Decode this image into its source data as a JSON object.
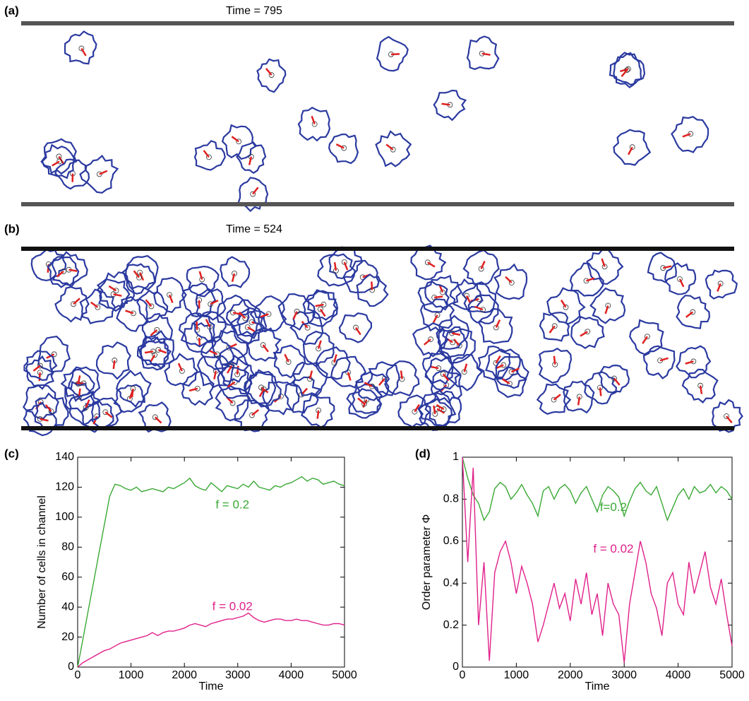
{
  "panels": [
    {
      "label": "(a)",
      "title": "Time = 795"
    },
    {
      "label": "(b)",
      "title": "Time = 524"
    }
  ],
  "chart_data": [
    {
      "type": "line",
      "label": "(c)",
      "xlabel": "Time",
      "ylabel": "Number of cells in channel",
      "x": [
        0,
        100,
        200,
        300,
        400,
        500,
        600,
        700,
        800,
        900,
        1000,
        1100,
        1200,
        1300,
        1400,
        1500,
        1600,
        1700,
        1800,
        1900,
        2000,
        2100,
        2200,
        2300,
        2400,
        2500,
        2600,
        2700,
        2800,
        2900,
        3000,
        3100,
        3200,
        3300,
        3400,
        3500,
        3600,
        3700,
        3800,
        3900,
        4000,
        4100,
        4200,
        4300,
        4400,
        4500,
        4600,
        4700,
        4800,
        4900,
        5000
      ],
      "xlim": [
        0,
        5000
      ],
      "xticks": [
        0,
        1000,
        2000,
        3000,
        4000,
        5000
      ],
      "ylim": [
        0,
        140
      ],
      "yticks": [
        0,
        20,
        40,
        60,
        80,
        100,
        120,
        140
      ],
      "series": [
        {
          "name": "f = 0.2",
          "color": "#3aa935",
          "values": [
            0,
            19,
            38,
            57,
            76,
            95,
            114,
            122,
            121,
            119,
            118,
            120,
            117,
            118,
            119,
            118,
            117,
            120,
            119,
            121,
            123,
            126,
            121,
            119,
            118,
            123,
            120,
            117,
            121,
            120,
            119,
            122,
            120,
            124,
            120,
            119,
            118,
            121,
            120,
            122,
            123,
            125,
            127,
            124,
            126,
            125,
            122,
            123,
            124,
            122,
            121
          ]
        },
        {
          "name": "f = 0.02",
          "color": "#e0208a",
          "values": [
            0,
            3,
            5,
            7,
            9,
            11,
            12,
            14,
            16,
            17,
            18,
            19,
            20,
            21,
            23,
            21,
            23,
            24,
            24,
            25,
            26,
            28,
            29,
            28,
            27,
            29,
            30,
            31,
            32,
            32,
            33,
            34,
            36,
            33,
            31,
            30,
            31,
            32,
            32,
            31,
            31,
            32,
            31,
            31,
            30,
            29,
            28,
            28,
            29,
            29,
            28
          ]
        }
      ]
    },
    {
      "type": "line",
      "label": "(d)",
      "xlabel": "Time",
      "ylabel": "Order parameter Φ",
      "x": [
        0,
        100,
        200,
        300,
        400,
        500,
        600,
        700,
        800,
        900,
        1000,
        1100,
        1200,
        1300,
        1400,
        1500,
        1600,
        1700,
        1800,
        1900,
        2000,
        2100,
        2200,
        2300,
        2400,
        2500,
        2600,
        2700,
        2800,
        2900,
        3000,
        3100,
        3200,
        3300,
        3400,
        3500,
        3600,
        3700,
        3800,
        3900,
        4000,
        4100,
        4200,
        4300,
        4400,
        4500,
        4600,
        4700,
        4800,
        4900,
        5000
      ],
      "xlim": [
        0,
        5000
      ],
      "xticks": [
        0,
        1000,
        2000,
        3000,
        4000,
        5000
      ],
      "ylim": [
        0,
        1
      ],
      "yticks": [
        0,
        0.2,
        0.4,
        0.6,
        0.8,
        1
      ],
      "series": [
        {
          "name": "f=0.2",
          "color": "#3aa935",
          "values": [
            1,
            0.9,
            0.82,
            0.78,
            0.7,
            0.74,
            0.85,
            0.88,
            0.86,
            0.8,
            0.83,
            0.87,
            0.82,
            0.78,
            0.72,
            0.84,
            0.86,
            0.8,
            0.85,
            0.87,
            0.84,
            0.78,
            0.83,
            0.86,
            0.8,
            0.74,
            0.82,
            0.86,
            0.84,
            0.81,
            0.72,
            0.79,
            0.85,
            0.88,
            0.84,
            0.82,
            0.86,
            0.78,
            0.7,
            0.76,
            0.82,
            0.85,
            0.8,
            0.86,
            0.83,
            0.84,
            0.87,
            0.83,
            0.86,
            0.84,
            0.8
          ]
        },
        {
          "name": "f = 0.02",
          "color": "#e0208a",
          "values": [
            1,
            0.5,
            0.95,
            0.2,
            0.5,
            0.03,
            0.45,
            0.55,
            0.6,
            0.5,
            0.35,
            0.48,
            0.4,
            0.3,
            0.12,
            0.2,
            0.3,
            0.4,
            0.28,
            0.35,
            0.22,
            0.42,
            0.3,
            0.45,
            0.25,
            0.35,
            0.15,
            0.4,
            0.3,
            0.25,
            0.02,
            0.3,
            0.45,
            0.6,
            0.5,
            0.35,
            0.28,
            0.15,
            0.4,
            0.45,
            0.3,
            0.25,
            0.5,
            0.35,
            0.45,
            0.55,
            0.38,
            0.3,
            0.42,
            0.25,
            0.1
          ]
        }
      ]
    }
  ]
}
